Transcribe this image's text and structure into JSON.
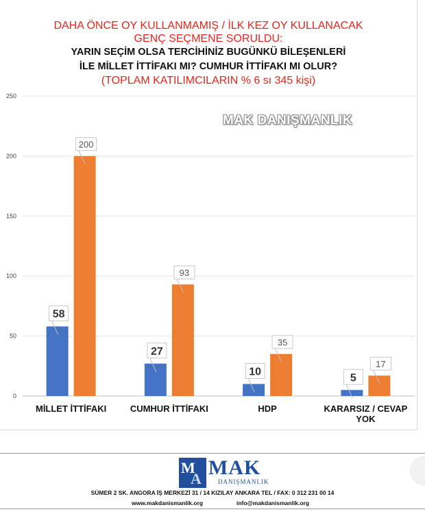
{
  "title": {
    "line1": "DAHA ÖNCE OY KULLANMAMIŞ / İLK KEZ OY KULLANACAK",
    "line2": "GENÇ SEÇMENE SORULDU:",
    "line3": "YARIN SEÇİM OLSA TERCİHİNİZ BUGÜNKÜ BİLEŞENLERİ",
    "line4": "İLE MİLLET İTTİFAKI MI? CUMHUR İTTİFAKI MI OLUR?",
    "line5": "(TOPLAM KATILIMCILARIN % 6 sı 345 kişi)"
  },
  "watermark": "MAK DANIŞMANLIK",
  "colors": {
    "blue": "#4472c4",
    "orange": "#ed7d31",
    "title_red": "#e8231d",
    "logo_blue": "#1f4f9e"
  },
  "chart_data": {
    "type": "bar",
    "categories": [
      "MİLLET İTTİFAKI",
      "CUMHUR İTTİFAKI",
      "HDP",
      "KARARSIZ / CEVAP YOK"
    ],
    "series": [
      {
        "values": [
          58,
          27,
          10,
          5
        ],
        "color": "#4472c4"
      },
      {
        "values": [
          200,
          93,
          35,
          17
        ],
        "color": "#ed7d31"
      }
    ],
    "yticks": [
      0,
      50,
      100,
      150,
      200,
      250
    ],
    "ylim": [
      0,
      250
    ],
    "grid": true,
    "legend": "none"
  },
  "footer": {
    "logo_name": "MAK",
    "logo_sub": "DANIŞMANLIK",
    "address": "SÜMER 2 SK. ANGORA İŞ MERKEZİ 31 / 14 KIZILAY  ANKARA TEL / FAX: 0 312 231 00 14",
    "website": "www.makdanismanlik.org",
    "email": "info@makdanismanlik.org"
  }
}
